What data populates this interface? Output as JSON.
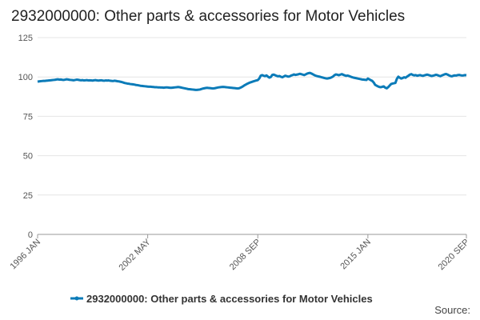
{
  "chart_data": {
    "type": "line",
    "title": "2932000000: Other parts & accessories for Motor Vehicles",
    "source": "Source:",
    "legend": "bottom",
    "grid": true,
    "ylim": [
      0,
      125
    ],
    "yticks": [
      0,
      25,
      50,
      75,
      100,
      125
    ],
    "xticks": [
      "1996 JAN",
      "2002 MAY",
      "2008 SEP",
      "2015 JAN",
      "2020 SEP"
    ],
    "x": [
      "1996 JAN",
      "1996 FEB",
      "1996 MAR",
      "1996 APR",
      "1996 MAY",
      "1996 JUN",
      "1996 JUL",
      "1996 AUG",
      "1996 SEP",
      "1996 OCT",
      "1996 NOV",
      "1996 DEC",
      "1997 JAN",
      "1997 FEB",
      "1997 MAR",
      "1997 APR",
      "1997 MAY",
      "1997 JUN",
      "1997 JUL",
      "1997 AUG",
      "1997 SEP",
      "1997 OCT",
      "1997 NOV",
      "1997 DEC",
      "1998 JAN",
      "1998 FEB",
      "1998 MAR",
      "1998 APR",
      "1998 MAY",
      "1998 JUN",
      "1998 JUL",
      "1998 AUG",
      "1998 SEP",
      "1998 OCT",
      "1998 NOV",
      "1998 DEC",
      "1999 JAN",
      "1999 FEB",
      "1999 MAR",
      "1999 APR",
      "1999 MAY",
      "1999 JUN",
      "1999 JUL",
      "1999 AUG",
      "1999 SEP",
      "1999 OCT",
      "1999 NOV",
      "1999 DEC",
      "2000 JAN",
      "2000 FEB",
      "2000 MAR",
      "2000 APR",
      "2000 MAY",
      "2000 JUN",
      "2000 JUL",
      "2000 AUG",
      "2000 SEP",
      "2000 OCT",
      "2000 NOV",
      "2000 DEC",
      "2001 JAN",
      "2001 FEB",
      "2001 MAR",
      "2001 APR",
      "2001 MAY",
      "2001 JUN",
      "2001 JUL",
      "2001 AUG",
      "2001 SEP",
      "2001 OCT",
      "2001 NOV",
      "2001 DEC",
      "2002 JAN",
      "2002 FEB",
      "2002 MAR",
      "2002 APR",
      "2002 MAY",
      "2002 JUN",
      "2002 JUL",
      "2002 AUG",
      "2002 SEP",
      "2002 OCT",
      "2002 NOV",
      "2002 DEC",
      "2003 JAN",
      "2003 FEB",
      "2003 MAR",
      "2003 APR",
      "2003 MAY",
      "2003 JUN",
      "2003 JUL",
      "2003 AUG",
      "2003 SEP",
      "2003 OCT",
      "2003 NOV",
      "2003 DEC",
      "2004 JAN",
      "2004 FEB",
      "2004 MAR",
      "2004 APR",
      "2004 MAY",
      "2004 JUN",
      "2004 JUL",
      "2004 AUG",
      "2004 SEP",
      "2004 OCT",
      "2004 NOV",
      "2004 DEC",
      "2005 JAN",
      "2005 FEB",
      "2005 MAR",
      "2005 APR",
      "2005 MAY",
      "2005 JUN",
      "2005 JUL",
      "2005 AUG",
      "2005 SEP",
      "2005 OCT",
      "2005 NOV",
      "2005 DEC",
      "2006 JAN",
      "2006 FEB",
      "2006 MAR",
      "2006 APR",
      "2006 MAY",
      "2006 JUN",
      "2006 JUL",
      "2006 AUG",
      "2006 SEP",
      "2006 OCT",
      "2006 NOV",
      "2006 DEC",
      "2007 JAN",
      "2007 FEB",
      "2007 MAR",
      "2007 APR",
      "2007 MAY",
      "2007 JUN",
      "2007 JUL",
      "2007 AUG",
      "2007 SEP",
      "2007 OCT",
      "2007 NOV",
      "2007 DEC",
      "2008 JAN",
      "2008 FEB",
      "2008 MAR",
      "2008 APR",
      "2008 MAY",
      "2008 JUN",
      "2008 JUL",
      "2008 AUG",
      "2008 SEP",
      "2008 OCT",
      "2008 NOV",
      "2008 DEC",
      "2009 JAN",
      "2009 FEB",
      "2009 MAR",
      "2009 APR",
      "2009 MAY",
      "2009 JUN",
      "2009 JUL",
      "2009 AUG",
      "2009 SEP",
      "2009 OCT",
      "2009 NOV",
      "2009 DEC",
      "2010 JAN",
      "2010 FEB",
      "2010 MAR",
      "2010 APR",
      "2010 MAY",
      "2010 JUN",
      "2010 JUL",
      "2010 AUG",
      "2010 SEP",
      "2010 OCT",
      "2010 NOV",
      "2010 DEC",
      "2011 JAN",
      "2011 FEB",
      "2011 MAR",
      "2011 APR",
      "2011 MAY",
      "2011 JUN",
      "2011 JUL",
      "2011 AUG",
      "2011 SEP",
      "2011 OCT",
      "2011 NOV",
      "2011 DEC",
      "2012 JAN",
      "2012 FEB",
      "2012 MAR",
      "2012 APR",
      "2012 MAY",
      "2012 JUN",
      "2012 JUL",
      "2012 AUG",
      "2012 SEP",
      "2012 OCT",
      "2012 NOV",
      "2012 DEC",
      "2013 JAN",
      "2013 FEB",
      "2013 MAR",
      "2013 APR",
      "2013 MAY",
      "2013 JUN",
      "2013 JUL",
      "2013 AUG",
      "2013 SEP",
      "2013 OCT",
      "2013 NOV",
      "2013 DEC",
      "2014 JAN",
      "2014 FEB",
      "2014 MAR",
      "2014 APR",
      "2014 MAY",
      "2014 JUN",
      "2014 JUL",
      "2014 AUG",
      "2014 SEP",
      "2014 OCT",
      "2014 NOV",
      "2014 DEC",
      "2015 JAN",
      "2015 FEB",
      "2015 MAR",
      "2015 APR",
      "2015 MAY",
      "2015 JUN",
      "2015 JUL",
      "2015 AUG",
      "2015 SEP",
      "2015 OCT",
      "2015 NOV",
      "2015 DEC",
      "2016 JAN",
      "2016 FEB",
      "2016 MAR",
      "2016 APR",
      "2016 MAY",
      "2016 JUN",
      "2016 JUL",
      "2016 AUG",
      "2016 SEP",
      "2016 OCT",
      "2016 NOV",
      "2016 DEC",
      "2017 JAN",
      "2017 FEB",
      "2017 MAR",
      "2017 APR",
      "2017 MAY",
      "2017 JUN",
      "2017 JUL",
      "2017 AUG",
      "2017 SEP",
      "2017 OCT",
      "2017 NOV",
      "2017 DEC",
      "2018 JAN",
      "2018 FEB",
      "2018 MAR",
      "2018 APR",
      "2018 MAY",
      "2018 JUN",
      "2018 JUL",
      "2018 AUG",
      "2018 SEP",
      "2018 OCT",
      "2018 NOV",
      "2018 DEC",
      "2019 JAN",
      "2019 FEB",
      "2019 MAR",
      "2019 APR",
      "2019 MAY",
      "2019 JUN",
      "2019 JUL",
      "2019 AUG",
      "2019 SEP",
      "2019 OCT",
      "2019 NOV",
      "2019 DEC",
      "2020 JAN",
      "2020 FEB",
      "2020 MAR",
      "2020 APR",
      "2020 MAY",
      "2020 JUN",
      "2020 JUL",
      "2020 AUG",
      "2020 SEP"
    ],
    "series": [
      {
        "name": "2932000000: Other parts & accessories for Motor Vehicles",
        "color": "#0b7bb8",
        "values": [
          97,
          97.2,
          97.3,
          97.4,
          97.5,
          97.5,
          97.6,
          97.7,
          97.8,
          97.9,
          98,
          98.1,
          98.2,
          98.4,
          98.5,
          98.3,
          98.4,
          98.2,
          98.1,
          98.3,
          98.5,
          98.4,
          98.2,
          98.1,
          98,
          97.9,
          98.1,
          98.3,
          98.2,
          98,
          97.9,
          98,
          97.8,
          97.9,
          98,
          97.8,
          97.9,
          97.8,
          97.7,
          97.9,
          98,
          97.8,
          97.7,
          97.8,
          97.9,
          97.7,
          97.6,
          97.8,
          97.7,
          97.8,
          97.6,
          97.5,
          97.4,
          97.6,
          97.5,
          97.3,
          97.2,
          97,
          96.8,
          96.5,
          96.2,
          96,
          95.8,
          95.7,
          95.5,
          95.4,
          95.3,
          95.1,
          94.9,
          94.8,
          94.6,
          94.4,
          94.3,
          94.2,
          94.1,
          94,
          93.9,
          93.8,
          93.8,
          93.7,
          93.6,
          93.5,
          93.5,
          93.4,
          93.4,
          93.3,
          93.3,
          93.2,
          93.3,
          93.4,
          93.3,
          93.2,
          93.1,
          93.2,
          93.3,
          93.4,
          93.5,
          93.6,
          93.5,
          93.3,
          93.1,
          92.9,
          92.7,
          92.5,
          92.3,
          92.2,
          92.1,
          92,
          91.9,
          91.8,
          91.8,
          91.9,
          92,
          92.3,
          92.6,
          92.8,
          93,
          93.1,
          93,
          92.9,
          92.8,
          92.7,
          92.8,
          93,
          93.2,
          93.4,
          93.5,
          93.6,
          93.7,
          93.6,
          93.5,
          93.4,
          93.3,
          93.2,
          93.1,
          93,
          92.9,
          92.8,
          92.7,
          92.8,
          93.2,
          93.6,
          94.2,
          94.8,
          95.3,
          95.8,
          96.2,
          96.6,
          96.9,
          97.2,
          97.5,
          97.8,
          98,
          99,
          100.8,
          101.2,
          100.8,
          100.5,
          101,
          100.2,
          99.6,
          100,
          101.3,
          101.5,
          101.1,
          100.7,
          100.4,
          100.6,
          100.1,
          99.8,
          100.3,
          100.8,
          100.5,
          100.2,
          100.4,
          100.9,
          101.2,
          101.6,
          101.3,
          101.5,
          101.7,
          102,
          101.8,
          101.5,
          101.2,
          101.6,
          102.1,
          102.4,
          102.6,
          102.2,
          101.7,
          101.2,
          100.8,
          100.5,
          100.3,
          100.1,
          99.8,
          99.6,
          99.3,
          99.1,
          99,
          99.2,
          99.4,
          99.8,
          100.3,
          101.2,
          101.6,
          101.4,
          101.1,
          101.5,
          101.8,
          101.4,
          101,
          100.7,
          100.9,
          100.6,
          100.2,
          99.9,
          99.6,
          99.4,
          99.2,
          99,
          98.8,
          98.6,
          98.4,
          98.3,
          98.2,
          98.1,
          99,
          98.5,
          98,
          97.5,
          96.5,
          95,
          94.5,
          94,
          93.6,
          93.5,
          93.8,
          94,
          93.2,
          92.8,
          93.5,
          94.5,
          95.5,
          95.8,
          96,
          96.2,
          98.8,
          100.2,
          99.5,
          99,
          99.3,
          99.8,
          99.5,
          100.2,
          100.8,
          101.5,
          101.8,
          101.3,
          101,
          101.2,
          100.8,
          101,
          101.2,
          100.9,
          100.7,
          101,
          101.3,
          101.5,
          101.2,
          100.9,
          100.6,
          100.8,
          101.1,
          101.4,
          101.2,
          100.8,
          100.5,
          100.9,
          101.3,
          101.7,
          101.9,
          101.5,
          101,
          100.6,
          100.4,
          100.8,
          101,
          100.9,
          101.2,
          101.3,
          101.1,
          100.9,
          101,
          101.2,
          101.1
        ]
      }
    ]
  }
}
